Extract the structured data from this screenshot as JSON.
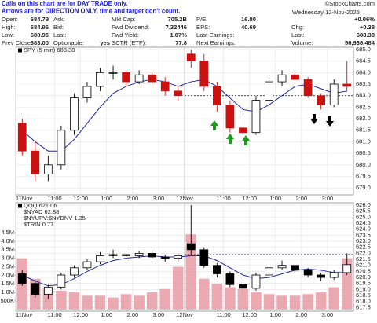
{
  "header": {
    "notes": [
      "Calls on this chart are for DAY TRADE only.",
      "Arrows are for DIRECTION ONLY, time and target don't count."
    ],
    "source": "©StockCharts.com",
    "date": "Wednesday 12-Nov-2025",
    "quote_columns": [
      [
        {
          "label": "Open:",
          "value": "684.79"
        },
        {
          "label": "High:",
          "value": "684.96"
        },
        {
          "label": "Low:",
          "value": "680.95"
        },
        {
          "label": "Prev Close:",
          "value": "683.00"
        }
      ],
      [
        {
          "label": "Ask:"
        },
        {
          "label": "Bid:"
        },
        {
          "label": "Last:"
        },
        {
          "label": "Optionable:",
          "value": "yes"
        }
      ],
      [
        {
          "label": "Mkt Cap:",
          "value": "705.2B"
        },
        {
          "label": "Fwd Dividend:",
          "value": "7.32446"
        },
        {
          "label": "Fwd Yield:",
          "value": "1.07%"
        },
        {
          "label": "SCTR (ETF):",
          "value": "77.8"
        }
      ],
      [
        {
          "label": "P/E:",
          "value": "16.80"
        },
        {
          "label": "EPS:",
          "value": "40.69"
        },
        {
          "label": "Last Earnings:"
        },
        {
          "label": "Next Earnings:"
        }
      ],
      [
        {
          "value": "+0.06%"
        },
        {
          "label": "Chg:",
          "value": "+0.38"
        },
        {
          "label": "Last:",
          "value": "683.38"
        },
        {
          "label": "Volume:",
          "value": "56,936,484"
        }
      ]
    ]
  },
  "chart_data": [
    {
      "type": "candlestick",
      "categories": [
        "11Nov",
        null,
        null,
        "11:00",
        null,
        "12:00",
        null,
        "1:00",
        null,
        "2:00",
        null,
        "3:00",
        null,
        "12Nov",
        null,
        null,
        "11:00",
        null,
        "12:00",
        null,
        "1:00",
        null,
        "2:00",
        null,
        "3:00",
        null
      ],
      "series": [
        {
          "name": "SPY (5 min) 683.38",
          "up_color": "#000000",
          "down_color": "#cc1111",
          "open": [
            681.8,
            680.6,
            679.6,
            680.0,
            681.5,
            682.9,
            683.4,
            684.0,
            684.0,
            683.6,
            683.9,
            683.6,
            683.2,
            684.8,
            684.5,
            683.4,
            682.6,
            681.6,
            681.4,
            682.8,
            683.6,
            683.9,
            683.7,
            683.0,
            682.6,
            683.5
          ],
          "high": [
            682.0,
            681.0,
            680.4,
            681.7,
            683.1,
            683.6,
            684.2,
            684.3,
            684.1,
            684.1,
            684.0,
            683.8,
            683.4,
            685.0,
            684.8,
            683.6,
            682.8,
            682.0,
            683.0,
            683.8,
            684.1,
            684.1,
            683.8,
            683.1,
            683.7,
            684.5
          ],
          "low": [
            680.4,
            679.3,
            679.3,
            679.8,
            681.3,
            682.7,
            683.2,
            683.7,
            683.4,
            683.5,
            683.4,
            683.0,
            682.8,
            684.2,
            683.2,
            682.3,
            681.4,
            681.0,
            681.3,
            682.6,
            683.4,
            683.5,
            682.9,
            682.4,
            682.5,
            683.2
          ],
          "close": [
            680.6,
            679.6,
            680.0,
            681.5,
            682.9,
            683.4,
            684.0,
            684.0,
            683.6,
            683.9,
            683.6,
            683.2,
            683.0,
            684.5,
            683.4,
            682.6,
            681.6,
            681.4,
            682.8,
            683.6,
            683.9,
            683.7,
            683.0,
            682.6,
            683.5,
            683.4
          ]
        }
      ],
      "moving_average": {
        "color": "#1f2a9a",
        "values": [
          681.5,
          681.0,
          680.6,
          680.6,
          681.1,
          681.8,
          682.5,
          683.1,
          683.4,
          683.6,
          683.7,
          683.6,
          683.4,
          683.6,
          683.7,
          683.4,
          682.9,
          682.4,
          682.3,
          682.6,
          683.0,
          683.4,
          683.5,
          683.3,
          683.1,
          683.2
        ]
      },
      "reference_line": {
        "value": 683.0,
        "color": "#1f2a9a"
      },
      "ylim": [
        678.7,
        685.1
      ],
      "yticks": [
        {
          "value": 685,
          "label": "685.0"
        },
        684.5,
        {
          "value": 684,
          "label": "684.0"
        },
        683.5,
        {
          "value": 683,
          "label": "683.0"
        },
        682.5,
        {
          "value": 682,
          "label": "682.0"
        },
        681.5,
        {
          "value": 681,
          "label": "681.0"
        },
        680.5,
        {
          "value": 680,
          "label": "680.0"
        },
        679.5,
        {
          "value": 679,
          "label": "679.0"
        }
      ],
      "grid": true
    },
    {
      "type": "candlestick",
      "categories": [
        "11Nov",
        null,
        null,
        "11:00",
        null,
        "12:00",
        null,
        "1:00",
        null,
        "2:00",
        null,
        "3:00",
        null,
        "12Nov",
        null,
        null,
        "11:00",
        null,
        "12:00",
        null,
        "1:00",
        null,
        "2:00",
        null,
        "3:00",
        null
      ],
      "series": [
        {
          "name": "QQQ 621.06",
          "up_color": "#000000",
          "down_color": "#000000",
          "open": [
            620.3,
            619.5,
            618.6,
            619.2,
            620.2,
            620.8,
            621.3,
            621.8,
            621.9,
            621.8,
            622.0,
            621.7,
            621.6,
            622.8,
            622.3,
            621.0,
            620.3,
            619.4,
            619.1,
            620.2,
            620.8,
            621.0,
            620.6,
            620.2,
            620.0,
            620.4
          ],
          "high": [
            620.6,
            619.8,
            619.4,
            620.4,
            621.0,
            621.5,
            622.1,
            622.3,
            622.2,
            622.2,
            622.3,
            621.9,
            622.0,
            626.0,
            622.5,
            621.2,
            620.5,
            619.6,
            620.4,
            621.0,
            621.4,
            621.1,
            620.8,
            620.4,
            620.6,
            622.0
          ],
          "low": [
            619.3,
            618.3,
            618.2,
            619.0,
            620.0,
            620.6,
            621.1,
            621.6,
            621.5,
            621.6,
            621.5,
            621.3,
            621.3,
            621.9,
            620.8,
            620.0,
            619.2,
            618.5,
            618.9,
            620.0,
            620.6,
            620.4,
            620.0,
            619.7,
            619.8,
            620.2
          ],
          "close": [
            619.5,
            618.6,
            619.2,
            620.2,
            620.8,
            621.3,
            621.8,
            621.9,
            621.8,
            622.0,
            621.7,
            621.6,
            621.8,
            622.3,
            621.0,
            620.3,
            619.4,
            619.1,
            620.2,
            620.8,
            621.0,
            620.6,
            620.2,
            620.0,
            620.4,
            621.06
          ]
        }
      ],
      "legend_extra": [
        "$NYAD 62.88",
        "$NYUPV:$NYDNV 1.35",
        "$TRIN 0.77"
      ],
      "moving_average": {
        "color": "#1f2a9a",
        "values": [
          620.2,
          619.7,
          619.3,
          619.4,
          619.9,
          620.5,
          621.0,
          621.4,
          621.6,
          621.7,
          621.8,
          621.7,
          621.7,
          621.8,
          621.8,
          621.4,
          620.8,
          620.2,
          619.9,
          620.0,
          620.3,
          620.6,
          620.7,
          620.6,
          620.4,
          620.4
        ]
      },
      "reference_line": {
        "value": 621.9,
        "color": "#1f2a9a"
      },
      "volume": {
        "axis": "y2",
        "color": "#e89aa4",
        "values": [
          3000000,
          1800000,
          1300000,
          1100000,
          1000000,
          800000,
          800000,
          700000,
          900000,
          800000,
          1000000,
          1200000,
          2500000,
          4400000,
          1800000,
          1500000,
          1300000,
          1200000,
          1000000,
          900000,
          800000,
          800000,
          900000,
          1000000,
          1300000,
          3000000
        ]
      },
      "ylim": [
        617.2,
        626.2
      ],
      "yticks": [
        {
          "value": 626,
          "label": "626.0"
        },
        625.5,
        {
          "value": 625,
          "label": "625.0"
        },
        624.5,
        {
          "value": 624,
          "label": "624.0"
        },
        623.5,
        {
          "value": 623,
          "label": "623.0"
        },
        622.5,
        {
          "value": 622,
          "label": "622.0"
        },
        621.5,
        {
          "value": 621,
          "label": "621.0"
        },
        620.5,
        {
          "value": 620,
          "label": "620.0"
        },
        619.5,
        {
          "value": 619,
          "label": "619.0"
        },
        618.5,
        {
          "value": 618,
          "label": "618.0"
        },
        617.5
      ],
      "y2lim": [
        -100000,
        6250000
      ],
      "y2ticks": [
        {
          "value": 4500000,
          "label": "4.5M"
        },
        {
          "value": 4000000,
          "label": "4.0M"
        },
        {
          "value": 3500000,
          "label": "3.5M"
        },
        {
          "value": 3000000,
          "label": "3.0M"
        },
        {
          "value": 2500000,
          "label": "2.5M"
        },
        {
          "value": 2000000,
          "label": "2.0M"
        },
        {
          "value": 1500000,
          "label": "1.5M"
        },
        {
          "value": 1000000,
          "label": "1.0M"
        },
        {
          "value": 500000,
          "label": "500K"
        }
      ],
      "grid": true
    }
  ]
}
